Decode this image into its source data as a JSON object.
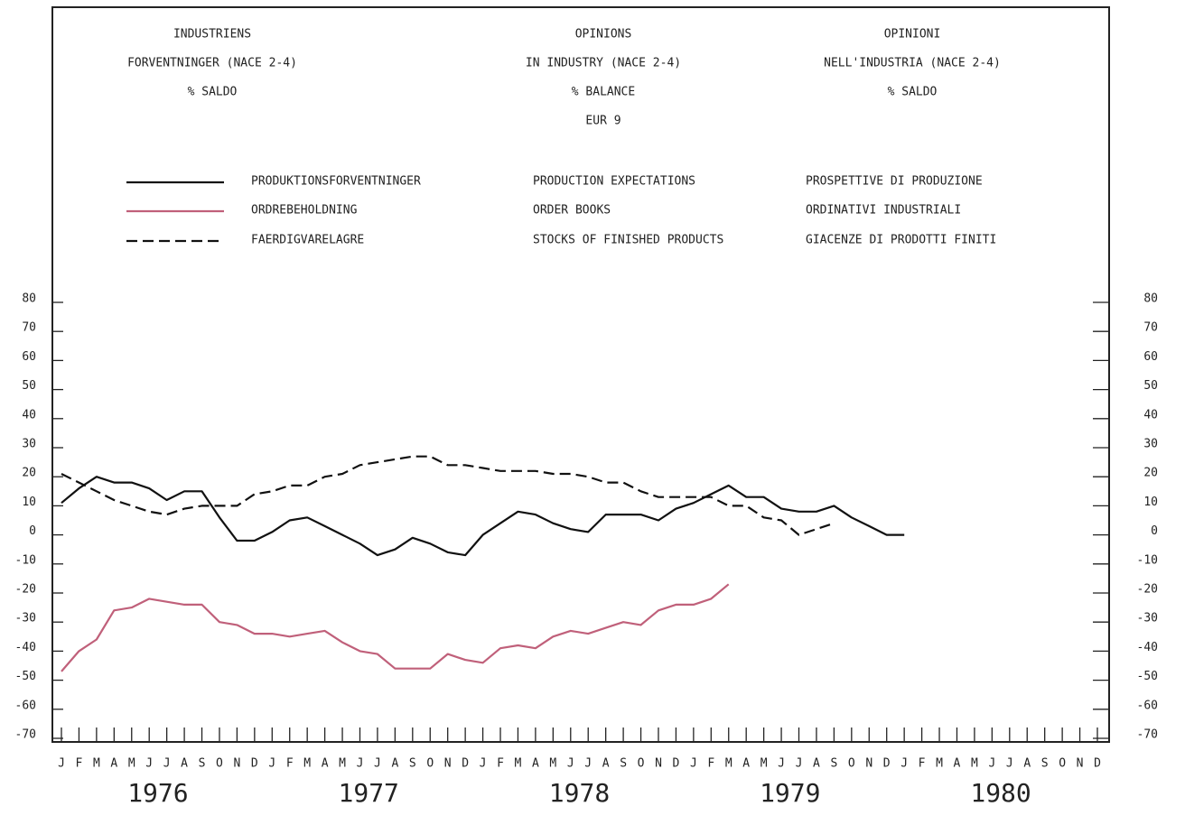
{
  "chart_data": {
    "type": "line",
    "title_blocks": [
      [
        "INDUSTRIENS",
        "FORVENTNINGER (NACE 2-4)",
        "% SALDO"
      ],
      [
        "OPINIONS",
        "IN INDUSTRY (NACE 2-4)",
        "% BALANCE",
        "EUR 9"
      ],
      [
        "OPINIONI",
        "NELL'INDUSTRIA (NACE 2-4)",
        "% SALDO"
      ]
    ],
    "categories": [
      "J",
      "F",
      "M",
      "A",
      "M",
      "J",
      "J",
      "A",
      "S",
      "O",
      "N",
      "D",
      "J",
      "F",
      "M",
      "A",
      "M",
      "J",
      "J",
      "A",
      "S",
      "O",
      "N",
      "D",
      "J",
      "F",
      "M",
      "A",
      "M",
      "J",
      "J",
      "A",
      "S",
      "O",
      "N",
      "D",
      "J",
      "F",
      "M",
      "A",
      "M",
      "J",
      "J",
      "A",
      "S",
      "O",
      "N",
      "D",
      "J",
      "F",
      "M",
      "A",
      "M",
      "J",
      "J",
      "A",
      "S",
      "O",
      "N",
      "D"
    ],
    "year_labels": [
      "1976",
      "1977",
      "1978",
      "1979",
      "1980"
    ],
    "ylim": [
      -70,
      80
    ],
    "yticks": [
      -70,
      -60,
      -50,
      -40,
      -30,
      -20,
      -10,
      0,
      10,
      20,
      30,
      40,
      50,
      60,
      70,
      80
    ],
    "series": [
      {
        "name": "PRODUCTION EXPECTATIONS",
        "name_da": "PRODUKTIONSFORVENTNINGER",
        "name_it": "PROSPETTIVE DI PRODUZIONE",
        "color": "#111111",
        "style": "solid",
        "values": [
          11,
          16,
          20,
          18,
          18,
          16,
          12,
          15,
          15,
          6,
          -2,
          -2,
          1,
          5,
          6,
          3,
          0,
          -3,
          -7,
          -5,
          -1,
          -3,
          -6,
          -7,
          0,
          4,
          8,
          7,
          4,
          2,
          1,
          7,
          7,
          7,
          5,
          9,
          11,
          14,
          17,
          13,
          13,
          9,
          8,
          8,
          10,
          6,
          3,
          0,
          0,
          null,
          null,
          null,
          null,
          null,
          null,
          null,
          null,
          null,
          null,
          null
        ]
      },
      {
        "name": "ORDER BOOKS",
        "name_da": "ORDREBEHOLDNING",
        "name_it": "ORDINATIVI INDUSTRIALI",
        "color": "#c0607a",
        "style": "solid",
        "values": [
          -47,
          -40,
          -36,
          -26,
          -25,
          -22,
          -23,
          -24,
          -24,
          -30,
          -31,
          -34,
          -34,
          -35,
          -34,
          -33,
          -37,
          -40,
          -41,
          -46,
          -46,
          -46,
          -41,
          -43,
          -44,
          -39,
          -38,
          -39,
          -35,
          -33,
          -34,
          -32,
          -30,
          -31,
          -26,
          -24,
          -24,
          -22,
          -17,
          null,
          null,
          null,
          null,
          null,
          null,
          null,
          null,
          null,
          null,
          null,
          null,
          null,
          null,
          null,
          null,
          null,
          null,
          null,
          null,
          null
        ]
      },
      {
        "name": "STOCKS OF FINISHED PRODUCTS",
        "name_da": "FAERDIGVARELAGRE",
        "name_it": "GIACENZE DI PRODOTTI FINITI",
        "color": "#111111",
        "style": "dashed",
        "values": [
          21,
          18,
          15,
          12,
          10,
          8,
          7,
          9,
          10,
          10,
          10,
          14,
          15,
          17,
          17,
          20,
          21,
          24,
          25,
          26,
          27,
          27,
          24,
          24,
          23,
          22,
          22,
          22,
          21,
          21,
          20,
          18,
          18,
          15,
          13,
          13,
          13,
          13,
          10,
          10,
          6,
          5,
          0,
          2,
          4,
          null,
          null,
          null,
          null,
          null,
          null,
          null,
          null,
          null,
          null,
          null,
          null,
          null,
          null,
          null
        ]
      }
    ]
  }
}
